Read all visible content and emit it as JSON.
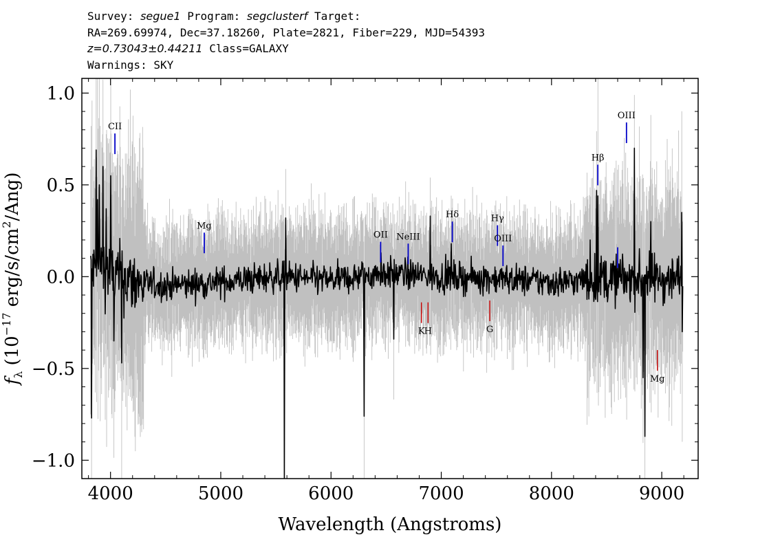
{
  "header": {
    "survey_label": "Survey:",
    "survey": "segue1",
    "program_label": "Program:",
    "program": "segclusterf",
    "target_label": "Target:",
    "line2": "RA=269.69974, Dec=37.18260, Plate=2821, Fiber=229, MJD=54393",
    "redshift": "z=0.73043±0.44211",
    "class_text": "Class=GALAXY",
    "warnings": "Warnings: SKY"
  },
  "chart_data": {
    "type": "line",
    "title": "",
    "xlabel": "Wavelength (Angstroms)",
    "ylabel": "f_λ (10^-17 erg/s/cm^2/Ang)",
    "xlim": [
      3740,
      9330
    ],
    "ylim": [
      -1.1,
      1.08
    ],
    "x_ticks": [
      4000,
      5000,
      6000,
      7000,
      8000,
      9000
    ],
    "x_tick_labels": [
      "4000",
      "5000",
      "6000",
      "7000",
      "8000",
      "9000"
    ],
    "y_ticks": [
      1.0,
      0.5,
      0.0,
      -0.5,
      -1.0
    ],
    "y_tick_labels": [
      "1.0",
      "0.5",
      "0.0",
      "−0.5",
      "−1.0"
    ],
    "grid": false,
    "series": [
      {
        "role": "flux",
        "color": "#000000",
        "x_start": 3820,
        "x_end": 9190,
        "anchors": [
          [
            3820,
            0.02
          ],
          [
            3900,
            0.06
          ],
          [
            4000,
            0.02
          ],
          [
            4200,
            -0.03
          ],
          [
            4500,
            -0.05
          ],
          [
            5000,
            -0.03
          ],
          [
            5500,
            0.0
          ],
          [
            6000,
            -0.02
          ],
          [
            6500,
            0.02
          ],
          [
            7000,
            0.0
          ],
          [
            7500,
            -0.01
          ],
          [
            8000,
            -0.03
          ],
          [
            8300,
            -0.02
          ],
          [
            8700,
            -0.01
          ],
          [
            9190,
            -0.01
          ]
        ],
        "spikes": [
          [
            3830,
            -0.77
          ],
          [
            3870,
            0.69
          ],
          [
            3880,
            0.42
          ],
          [
            3900,
            0.5
          ],
          [
            3930,
            0.6
          ],
          [
            3960,
            0.37
          ],
          [
            4000,
            0.55
          ],
          [
            4100,
            -0.47
          ],
          [
            4030,
            -0.35
          ],
          [
            5590,
            0.32
          ],
          [
            5577,
            -1.1
          ],
          [
            6300,
            -0.76
          ],
          [
            6455,
            0.13
          ],
          [
            6570,
            -0.34
          ],
          [
            6900,
            0.33
          ],
          [
            7090,
            0.18
          ],
          [
            8020,
            -0.1
          ],
          [
            8350,
            0.2
          ],
          [
            8410,
            0.47
          ],
          [
            8420,
            0.44
          ],
          [
            8750,
            0.7
          ],
          [
            8830,
            -0.55
          ],
          [
            8845,
            -0.87
          ],
          [
            8900,
            0.3
          ],
          [
            9180,
            0.35
          ],
          [
            9185,
            -0.3
          ]
        ],
        "noise": 0.06,
        "points": 1300
      },
      {
        "role": "error",
        "color": "#c0c0c0",
        "noise": 0.18,
        "points": 1300
      }
    ],
    "emission_lines": [
      {
        "label": "CII",
        "x": 4040,
        "y": 0.78,
        "color": "#0000c8"
      },
      {
        "label": "Mg",
        "x": 4850,
        "y": 0.24,
        "color": "#0000c8"
      },
      {
        "label": "OII",
        "x": 6450,
        "y": 0.19,
        "color": "#0000c8"
      },
      {
        "label": "NeIII",
        "x": 6700,
        "y": 0.18,
        "color": "#0000c8"
      },
      {
        "label": "Hδ",
        "x": 7100,
        "y": 0.3,
        "color": "#0000c8"
      },
      {
        "label": "Hγ",
        "x": 7510,
        "y": 0.28,
        "color": "#0000c8"
      },
      {
        "label": "OIII",
        "x": 7560,
        "y": 0.17,
        "color": "#0000c8"
      },
      {
        "label": "Hβ",
        "x": 8420,
        "y": 0.61,
        "color": "#0000c8"
      },
      {
        "label": "OIII",
        "x": 8680,
        "y": 0.84,
        "color": "#0000c8"
      },
      {
        "label": "",
        "x": 8600,
        "y": 0.16,
        "color": "#0000c8"
      }
    ],
    "absorption_lines": [
      {
        "label": "K",
        "x": 6820,
        "y": -0.14,
        "color": "#c80000"
      },
      {
        "label": "H",
        "x": 6880,
        "y": -0.14,
        "color": "#c80000"
      },
      {
        "label": "G",
        "x": 7440,
        "y": -0.13,
        "color": "#c80000"
      },
      {
        "label": "Mg",
        "x": 8960,
        "y": -0.4,
        "color": "#c80000"
      }
    ]
  }
}
